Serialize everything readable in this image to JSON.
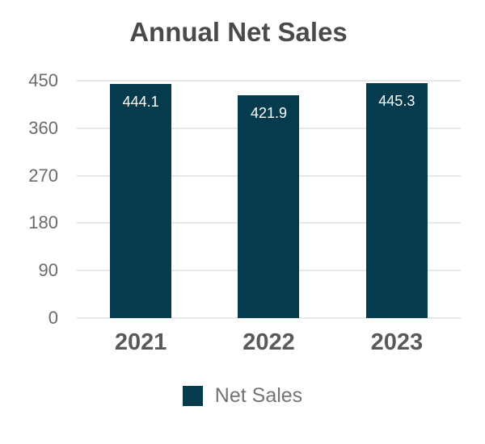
{
  "title": "Annual Net Sales",
  "chart_data": {
    "type": "bar",
    "title": "Annual Net Sales",
    "categories": [
      "2021",
      "2022",
      "2023"
    ],
    "series": [
      {
        "name": "Net Sales",
        "values": [
          444.1,
          421.9,
          445.3
        ]
      }
    ],
    "value_labels": [
      "444.1",
      "421.9",
      "445.3"
    ],
    "xlabel": "",
    "ylabel": "",
    "ylim": [
      0,
      450
    ],
    "yticks": [
      0,
      90,
      180,
      270,
      360,
      450
    ],
    "grid": true,
    "legend_position": "bottom",
    "bar_color": "#053b4d"
  },
  "legend": {
    "items": [
      {
        "label": "Net Sales",
        "color": "#053b4d"
      }
    ]
  },
  "colors": {
    "bar": "#053b4d",
    "gridline": "#e8e8e8",
    "title_text": "#4a4a4a",
    "ytick_text": "#6b6b6b",
    "xlabel_text": "#595959",
    "value_text": "#ffffff",
    "legend_text": "#737373",
    "background": "#ffffff"
  }
}
